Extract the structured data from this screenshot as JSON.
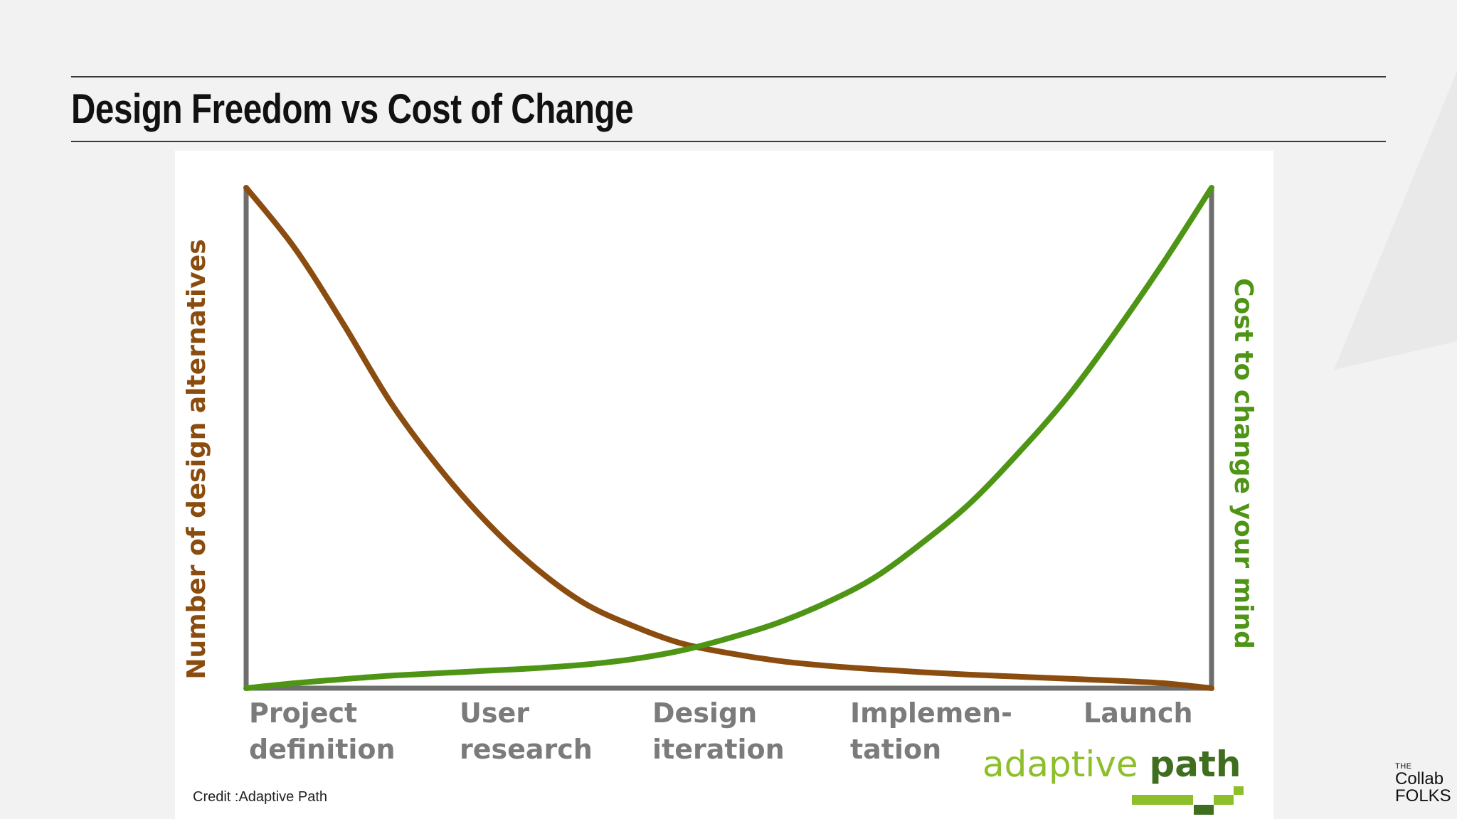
{
  "slide": {
    "title": "Design Freedom vs Cost of Change",
    "credit": "Credit :Adaptive Path",
    "logo": {
      "the": "THE",
      "collab": "Collab",
      "folks": "FOLKS"
    }
  },
  "chart_data": {
    "type": "line",
    "title": "",
    "ylabel_left": "Number of design alternatives",
    "ylabel_right": "Cost to change your mind",
    "categories": [
      [
        "Project",
        "definition"
      ],
      [
        "User",
        "research"
      ],
      [
        "Design",
        "iteration"
      ],
      [
        "Implemen-",
        "tation"
      ],
      [
        "Launch"
      ]
    ],
    "x_range": [
      0,
      1
    ],
    "y_range": [
      0,
      1
    ],
    "grid": false,
    "series": [
      {
        "name": "Number of design alternatives",
        "color": "#8a4c0f",
        "points": [
          [
            0.0,
            1.0
          ],
          [
            0.05,
            0.88
          ],
          [
            0.1,
            0.73
          ],
          [
            0.15,
            0.57
          ],
          [
            0.2,
            0.44
          ],
          [
            0.25,
            0.33
          ],
          [
            0.3,
            0.24
          ],
          [
            0.35,
            0.17
          ],
          [
            0.4,
            0.125
          ],
          [
            0.45,
            0.09
          ],
          [
            0.5,
            0.07
          ],
          [
            0.55,
            0.055
          ],
          [
            0.6,
            0.045
          ],
          [
            0.65,
            0.038
          ],
          [
            0.7,
            0.032
          ],
          [
            0.75,
            0.027
          ],
          [
            0.8,
            0.023
          ],
          [
            0.85,
            0.019
          ],
          [
            0.9,
            0.015
          ],
          [
            0.95,
            0.01
          ],
          [
            1.0,
            0.0
          ]
        ]
      },
      {
        "name": "Cost to change your mind",
        "color": "#4e9515",
        "points": [
          [
            0.0,
            0.0
          ],
          [
            0.05,
            0.01
          ],
          [
            0.1,
            0.018
          ],
          [
            0.15,
            0.025
          ],
          [
            0.2,
            0.03
          ],
          [
            0.25,
            0.035
          ],
          [
            0.3,
            0.04
          ],
          [
            0.35,
            0.047
          ],
          [
            0.4,
            0.058
          ],
          [
            0.45,
            0.075
          ],
          [
            0.5,
            0.1
          ],
          [
            0.55,
            0.13
          ],
          [
            0.6,
            0.17
          ],
          [
            0.65,
            0.22
          ],
          [
            0.7,
            0.29
          ],
          [
            0.75,
            0.37
          ],
          [
            0.8,
            0.47
          ],
          [
            0.85,
            0.58
          ],
          [
            0.9,
            0.71
          ],
          [
            0.95,
            0.85
          ],
          [
            1.0,
            1.0
          ]
        ]
      }
    ],
    "axis_color": "#6e6e6e",
    "category_color": "#7b7b7b",
    "brand": {
      "word1": "adaptive",
      "word2": "path",
      "color1": "#8cbf2a",
      "color2": "#3f6e1f"
    }
  }
}
